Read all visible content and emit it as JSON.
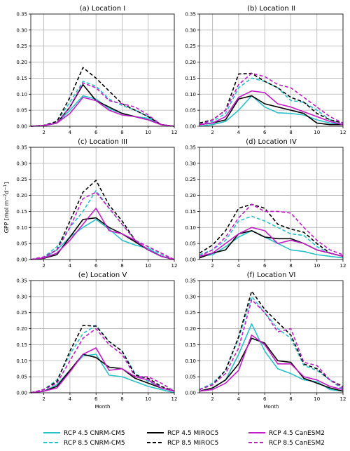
{
  "colors": {
    "cnrm": "#27c1c8",
    "miroc": "#000000",
    "canesm": "#c11cc8",
    "grid": "#b0b0b0"
  },
  "chart_data": {
    "type": "line",
    "ylabel_text": "GPP [mol m",
    "ylabel_sup1": "−2",
    "ylabel_mid": "d",
    "ylabel_sup2": "−1",
    "ylabel_end": "]",
    "xlabel": "Month",
    "xlim": [
      1,
      12
    ],
    "ylim": [
      0,
      0.35
    ],
    "xticks": [
      2,
      4,
      6,
      8,
      10,
      12
    ],
    "yticks": [
      "0.00",
      "0.05",
      "0.10",
      "0.15",
      "0.20",
      "0.25",
      "0.30",
      "0.35"
    ],
    "grid": true,
    "x": [
      1,
      2,
      3,
      4,
      5,
      6,
      7,
      8,
      9,
      10,
      11,
      12
    ],
    "legend": [
      {
        "label": "RCP 4.5 CNRM-CM5",
        "color": "cnrm",
        "dash": false
      },
      {
        "label": "RCP 8.5 CNRM-CM5",
        "color": "cnrm",
        "dash": true
      },
      {
        "label": "RCP 4.5 MIROC5",
        "color": "miroc",
        "dash": false
      },
      {
        "label": "RCP 8.5 MIROC5",
        "color": "miroc",
        "dash": true
      },
      {
        "label": "RCP 4.5 CanESM2",
        "color": "canesm",
        "dash": false
      },
      {
        "label": "RCP 8.5 CanESM2",
        "color": "canesm",
        "dash": true
      }
    ],
    "panels": [
      {
        "title": "(a) Location I",
        "series": [
          {
            "key": "cnrm45",
            "values": [
              0.0,
              0.002,
              0.01,
              0.05,
              0.095,
              0.085,
              0.055,
              0.04,
              0.03,
              0.025,
              0.005,
              0.0
            ]
          },
          {
            "key": "cnrm85",
            "values": [
              0.0,
              0.003,
              0.015,
              0.075,
              0.14,
              0.125,
              0.085,
              0.065,
              0.05,
              0.03,
              0.005,
              0.0
            ]
          },
          {
            "key": "miroc45",
            "values": [
              0.0,
              0.002,
              0.01,
              0.06,
              0.13,
              0.08,
              0.06,
              0.04,
              0.03,
              0.02,
              0.005,
              0.0
            ]
          },
          {
            "key": "miroc85",
            "values": [
              0.0,
              0.003,
              0.015,
              0.09,
              0.183,
              0.15,
              0.11,
              0.07,
              0.05,
              0.03,
              0.005,
              0.0
            ]
          },
          {
            "key": "canesm45",
            "values": [
              0.0,
              0.002,
              0.01,
              0.04,
              0.09,
              0.08,
              0.05,
              0.035,
              0.03,
              0.02,
              0.005,
              0.0
            ]
          },
          {
            "key": "canesm85",
            "values": [
              0.0,
              0.003,
              0.01,
              0.06,
              0.135,
              0.12,
              0.08,
              0.07,
              0.06,
              0.035,
              0.005,
              0.0
            ]
          }
        ]
      },
      {
        "title": "(b) Location II",
        "series": [
          {
            "key": "cnrm45",
            "values": [
              0.0,
              0.005,
              0.015,
              0.05,
              0.095,
              0.06,
              0.042,
              0.04,
              0.035,
              0.02,
              0.01,
              0.005
            ]
          },
          {
            "key": "cnrm85",
            "values": [
              0.005,
              0.015,
              0.04,
              0.12,
              0.15,
              0.14,
              0.12,
              0.08,
              0.075,
              0.05,
              0.02,
              0.005
            ]
          },
          {
            "key": "miroc45",
            "values": [
              0.005,
              0.01,
              0.02,
              0.085,
              0.095,
              0.07,
              0.06,
              0.05,
              0.04,
              0.01,
              0.005,
              0.005
            ]
          },
          {
            "key": "miroc85",
            "values": [
              0.01,
              0.02,
              0.05,
              0.163,
              0.165,
              0.14,
              0.12,
              0.09,
              0.075,
              0.04,
              0.02,
              0.01
            ]
          },
          {
            "key": "canesm45",
            "values": [
              0.005,
              0.01,
              0.03,
              0.09,
              0.11,
              0.105,
              0.07,
              0.06,
              0.045,
              0.03,
              0.015,
              0.005
            ]
          },
          {
            "key": "canesm85",
            "values": [
              0.005,
              0.02,
              0.05,
              0.13,
              0.165,
              0.155,
              0.13,
              0.12,
              0.09,
              0.06,
              0.03,
              0.01
            ]
          }
        ]
      },
      {
        "title": "(c) Location III",
        "series": [
          {
            "key": "cnrm45",
            "values": [
              0.0,
              0.005,
              0.03,
              0.07,
              0.1,
              0.125,
              0.095,
              0.06,
              0.045,
              0.035,
              0.01,
              0.0
            ]
          },
          {
            "key": "cnrm85",
            "values": [
              0.0,
              0.008,
              0.04,
              0.1,
              0.15,
              0.215,
              0.16,
              0.11,
              0.06,
              0.04,
              0.015,
              0.0
            ]
          },
          {
            "key": "miroc45",
            "values": [
              0.0,
              0.004,
              0.015,
              0.07,
              0.125,
              0.13,
              0.1,
              0.08,
              0.055,
              0.03,
              0.01,
              0.0
            ]
          },
          {
            "key": "miroc85",
            "values": [
              0.0,
              0.008,
              0.03,
              0.12,
              0.21,
              0.247,
              0.17,
              0.12,
              0.06,
              0.03,
              0.01,
              0.0
            ]
          },
          {
            "key": "canesm45",
            "values": [
              0.0,
              0.005,
              0.02,
              0.06,
              0.11,
              0.16,
              0.09,
              0.08,
              0.06,
              0.03,
              0.01,
              0.0
            ]
          },
          {
            "key": "canesm85",
            "values": [
              0.0,
              0.008,
              0.03,
              0.1,
              0.19,
              0.21,
              0.16,
              0.11,
              0.06,
              0.04,
              0.02,
              0.0
            ]
          }
        ]
      },
      {
        "title": "(d) Location IV",
        "series": [
          {
            "key": "cnrm45",
            "values": [
              0.01,
              0.015,
              0.04,
              0.07,
              0.09,
              0.07,
              0.05,
              0.03,
              0.025,
              0.015,
              0.01,
              0.005
            ]
          },
          {
            "key": "cnrm85",
            "values": [
              0.015,
              0.03,
              0.06,
              0.12,
              0.135,
              0.12,
              0.1,
              0.08,
              0.075,
              0.04,
              0.02,
              0.01
            ]
          },
          {
            "key": "miroc45",
            "values": [
              0.005,
              0.02,
              0.03,
              0.08,
              0.09,
              0.07,
              0.065,
              0.065,
              0.05,
              0.03,
              0.02,
              0.01
            ]
          },
          {
            "key": "miroc85",
            "values": [
              0.02,
              0.045,
              0.09,
              0.16,
              0.172,
              0.16,
              0.11,
              0.095,
              0.085,
              0.05,
              0.02,
              0.01
            ]
          },
          {
            "key": "canesm45",
            "values": [
              0.01,
              0.02,
              0.05,
              0.08,
              0.1,
              0.09,
              0.05,
              0.06,
              0.05,
              0.03,
              0.02,
              0.01
            ]
          },
          {
            "key": "canesm85",
            "values": [
              0.01,
              0.03,
              0.07,
              0.13,
              0.172,
              0.15,
              0.15,
              0.145,
              0.1,
              0.06,
              0.03,
              0.015
            ]
          }
        ]
      },
      {
        "title": "(e) Location V",
        "series": [
          {
            "key": "cnrm45",
            "values": [
              0.0,
              0.005,
              0.025,
              0.07,
              0.115,
              0.12,
              0.055,
              0.05,
              0.035,
              0.02,
              0.01,
              0.0
            ]
          },
          {
            "key": "cnrm85",
            "values": [
              0.0,
              0.01,
              0.04,
              0.12,
              0.185,
              0.21,
              0.16,
              0.13,
              0.06,
              0.035,
              0.02,
              0.005
            ]
          },
          {
            "key": "miroc45",
            "values": [
              0.0,
              0.005,
              0.02,
              0.07,
              0.12,
              0.11,
              0.08,
              0.075,
              0.045,
              0.03,
              0.015,
              0.005
            ]
          },
          {
            "key": "miroc85",
            "values": [
              0.0,
              0.01,
              0.035,
              0.13,
              0.21,
              0.208,
              0.16,
              0.13,
              0.055,
              0.045,
              0.02,
              0.005
            ]
          },
          {
            "key": "canesm45",
            "values": [
              0.0,
              0.005,
              0.015,
              0.065,
              0.12,
              0.14,
              0.07,
              0.075,
              0.05,
              0.04,
              0.015,
              0.005
            ]
          },
          {
            "key": "canesm85",
            "values": [
              0.0,
              0.01,
              0.03,
              0.1,
              0.17,
              0.2,
              0.15,
              0.12,
              0.05,
              0.05,
              0.03,
              0.005
            ]
          }
        ]
      },
      {
        "title": "(f) Location VI",
        "series": [
          {
            "key": "cnrm45",
            "values": [
              0.005,
              0.015,
              0.04,
              0.12,
              0.215,
              0.13,
              0.075,
              0.06,
              0.04,
              0.035,
              0.01,
              0.005
            ]
          },
          {
            "key": "cnrm85",
            "values": [
              0.01,
              0.03,
              0.07,
              0.17,
              0.3,
              0.25,
              0.2,
              0.17,
              0.085,
              0.07,
              0.04,
              0.01
            ]
          },
          {
            "key": "miroc45",
            "values": [
              0.005,
              0.015,
              0.04,
              0.09,
              0.17,
              0.155,
              0.1,
              0.095,
              0.045,
              0.03,
              0.015,
              0.005
            ]
          },
          {
            "key": "miroc85",
            "values": [
              0.01,
              0.025,
              0.07,
              0.175,
              0.317,
              0.26,
              0.22,
              0.18,
              0.09,
              0.075,
              0.04,
              0.02
            ]
          },
          {
            "key": "canesm45",
            "values": [
              0.005,
              0.01,
              0.03,
              0.07,
              0.18,
              0.15,
              0.09,
              0.09,
              0.05,
              0.04,
              0.02,
              0.01
            ]
          },
          {
            "key": "canesm85",
            "values": [
              0.01,
              0.025,
              0.06,
              0.14,
              0.29,
              0.25,
              0.19,
              0.2,
              0.095,
              0.085,
              0.04,
              0.015
            ]
          }
        ]
      }
    ]
  }
}
